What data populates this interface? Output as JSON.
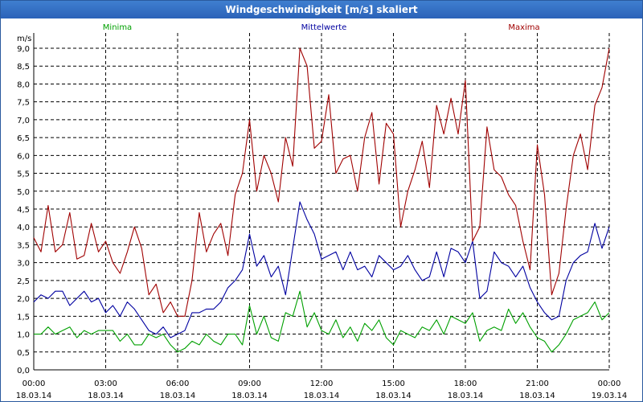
{
  "window": {
    "title": "Windgeschwindigkeit [m/s] skaliert"
  },
  "chart_data": {
    "type": "line",
    "title": "Windgeschwindigkeit [m/s] skaliert",
    "ylabel": "m/s",
    "xlabel": "",
    "ylim": [
      0,
      9.0
    ],
    "grid": true,
    "y_ticks": [
      "0,0",
      "0,5",
      "1,0",
      "1,5",
      "2,0",
      "2,5",
      "3,0",
      "3,5",
      "4,0",
      "4,5",
      "5,0",
      "5,5",
      "6,0",
      "6,5",
      "7,0",
      "7,5",
      "8,0",
      "8,5",
      "9,0"
    ],
    "x_ticks": [
      {
        "time": "00:00",
        "date": "18.03.14"
      },
      {
        "time": "03:00",
        "date": "18.03.14"
      },
      {
        "time": "06:00",
        "date": "18.03.14"
      },
      {
        "time": "09:00",
        "date": "18.03.14"
      },
      {
        "time": "12:00",
        "date": "18.03.14"
      },
      {
        "time": "15:00",
        "date": "18.03.14"
      },
      {
        "time": "18:00",
        "date": "18.03.14"
      },
      {
        "time": "21:00",
        "date": "18.03.14"
      },
      {
        "time": "00:00",
        "date": "19.03.14"
      }
    ],
    "x_hours_range": [
      0,
      24
    ],
    "series": [
      {
        "name": "Minima",
        "color": "#00a000",
        "x": [
          0,
          0.3,
          0.6,
          0.9,
          1.2,
          1.5,
          1.8,
          2.1,
          2.4,
          2.7,
          3.0,
          3.3,
          3.6,
          3.9,
          4.2,
          4.5,
          4.8,
          5.1,
          5.4,
          5.7,
          6.0,
          6.3,
          6.6,
          6.9,
          7.2,
          7.5,
          7.8,
          8.1,
          8.4,
          8.7,
          9.0,
          9.3,
          9.6,
          9.9,
          10.2,
          10.5,
          10.8,
          11.1,
          11.4,
          11.7,
          12.0,
          12.3,
          12.6,
          12.9,
          13.2,
          13.5,
          13.8,
          14.1,
          14.4,
          14.7,
          15.0,
          15.3,
          15.6,
          15.9,
          16.2,
          16.5,
          16.8,
          17.1,
          17.4,
          17.7,
          18.0,
          18.3,
          18.6,
          18.9,
          19.2,
          19.5,
          19.8,
          20.1,
          20.4,
          20.7,
          21.0,
          21.3,
          21.6,
          21.9,
          22.2,
          22.5,
          22.8,
          23.1,
          23.4,
          23.7,
          24.0
        ],
        "values": [
          1.0,
          1.0,
          1.2,
          1.0,
          1.1,
          1.2,
          0.9,
          1.1,
          1.0,
          1.1,
          1.1,
          1.1,
          0.8,
          1.0,
          0.7,
          0.7,
          1.0,
          0.9,
          1.0,
          0.7,
          0.5,
          0.6,
          0.8,
          0.7,
          1.0,
          0.8,
          0.7,
          1.0,
          1.0,
          0.7,
          1.8,
          1.0,
          1.5,
          0.9,
          0.8,
          1.6,
          1.5,
          2.2,
          1.2,
          1.6,
          1.1,
          1.0,
          1.4,
          0.9,
          1.2,
          0.8,
          1.3,
          1.1,
          1.4,
          0.9,
          0.7,
          1.1,
          1.0,
          0.9,
          1.2,
          1.1,
          1.4,
          1.0,
          1.5,
          1.4,
          1.3,
          1.6,
          0.8,
          1.1,
          1.2,
          1.1,
          1.7,
          1.3,
          1.6,
          1.2,
          0.9,
          0.8,
          0.5,
          0.7,
          1.0,
          1.4,
          1.5,
          1.6,
          1.9,
          1.4,
          1.6
        ]
      },
      {
        "name": "Mittelwerte",
        "color": "#0000a0",
        "x": [
          0,
          0.3,
          0.6,
          0.9,
          1.2,
          1.5,
          1.8,
          2.1,
          2.4,
          2.7,
          3.0,
          3.3,
          3.6,
          3.9,
          4.2,
          4.5,
          4.8,
          5.1,
          5.4,
          5.7,
          6.0,
          6.3,
          6.6,
          6.9,
          7.2,
          7.5,
          7.8,
          8.1,
          8.4,
          8.7,
          9.0,
          9.3,
          9.6,
          9.9,
          10.2,
          10.5,
          10.8,
          11.1,
          11.4,
          11.7,
          12.0,
          12.3,
          12.6,
          12.9,
          13.2,
          13.5,
          13.8,
          14.1,
          14.4,
          14.7,
          15.0,
          15.3,
          15.6,
          15.9,
          16.2,
          16.5,
          16.8,
          17.1,
          17.4,
          17.7,
          18.0,
          18.3,
          18.6,
          18.9,
          19.2,
          19.5,
          19.8,
          20.1,
          20.4,
          20.7,
          21.0,
          21.3,
          21.6,
          21.9,
          22.2,
          22.5,
          22.8,
          23.1,
          23.4,
          23.7,
          24.0
        ],
        "values": [
          1.9,
          2.1,
          2.0,
          2.2,
          2.2,
          1.8,
          2.0,
          2.2,
          1.9,
          2.0,
          1.6,
          1.8,
          1.5,
          1.9,
          1.7,
          1.4,
          1.1,
          1.0,
          1.2,
          0.9,
          1.0,
          1.1,
          1.6,
          1.6,
          1.7,
          1.7,
          1.9,
          2.3,
          2.5,
          2.8,
          3.8,
          2.9,
          3.2,
          2.6,
          2.9,
          2.1,
          3.4,
          4.7,
          4.2,
          3.8,
          3.1,
          3.2,
          3.3,
          2.8,
          3.3,
          2.8,
          2.9,
          2.6,
          3.2,
          3.0,
          2.8,
          2.9,
          3.2,
          2.8,
          2.5,
          2.6,
          3.3,
          2.6,
          3.4,
          3.3,
          3.0,
          3.6,
          2.0,
          2.2,
          3.3,
          3.0,
          2.9,
          2.6,
          2.9,
          2.3,
          1.9,
          1.6,
          1.4,
          1.5,
          2.5,
          3.0,
          3.2,
          3.3,
          4.1,
          3.4,
          4.0
        ]
      },
      {
        "name": "Maxima",
        "color": "#a00000",
        "x": [
          0,
          0.3,
          0.6,
          0.9,
          1.2,
          1.5,
          1.8,
          2.1,
          2.4,
          2.7,
          3.0,
          3.3,
          3.6,
          3.9,
          4.2,
          4.5,
          4.8,
          5.1,
          5.4,
          5.7,
          6.0,
          6.3,
          6.6,
          6.9,
          7.2,
          7.5,
          7.8,
          8.1,
          8.4,
          8.7,
          9.0,
          9.3,
          9.6,
          9.9,
          10.2,
          10.5,
          10.8,
          11.1,
          11.4,
          11.7,
          12.0,
          12.3,
          12.6,
          12.9,
          13.2,
          13.5,
          13.8,
          14.1,
          14.4,
          14.7,
          15.0,
          15.3,
          15.6,
          15.9,
          16.2,
          16.5,
          16.8,
          17.1,
          17.4,
          17.7,
          18.0,
          18.3,
          18.6,
          18.9,
          19.2,
          19.5,
          19.8,
          20.1,
          20.4,
          20.7,
          21.0,
          21.3,
          21.6,
          21.9,
          22.2,
          22.5,
          22.8,
          23.1,
          23.4,
          23.7,
          24.0
        ],
        "values": [
          3.7,
          3.3,
          4.6,
          3.3,
          3.5,
          4.4,
          3.1,
          3.2,
          4.1,
          3.3,
          3.6,
          3.0,
          2.7,
          3.3,
          4.0,
          3.4,
          2.1,
          2.4,
          1.6,
          1.9,
          1.5,
          1.5,
          2.5,
          4.4,
          3.3,
          3.8,
          4.1,
          3.2,
          4.9,
          5.5,
          7.0,
          5.0,
          6.0,
          5.5,
          4.7,
          6.5,
          5.7,
          9.0,
          8.5,
          6.2,
          6.4,
          7.7,
          5.5,
          5.9,
          6.0,
          5.0,
          6.5,
          7.2,
          5.2,
          6.9,
          6.6,
          4.0,
          5.0,
          5.6,
          6.4,
          5.1,
          7.4,
          6.6,
          7.6,
          6.6,
          8.1,
          3.6,
          4.0,
          6.8,
          5.6,
          5.4,
          4.9,
          4.6,
          3.6,
          2.8,
          6.3,
          4.9,
          2.1,
          2.7,
          4.5,
          6.0,
          6.6,
          5.6,
          7.4,
          7.9,
          9.0
        ]
      }
    ]
  }
}
